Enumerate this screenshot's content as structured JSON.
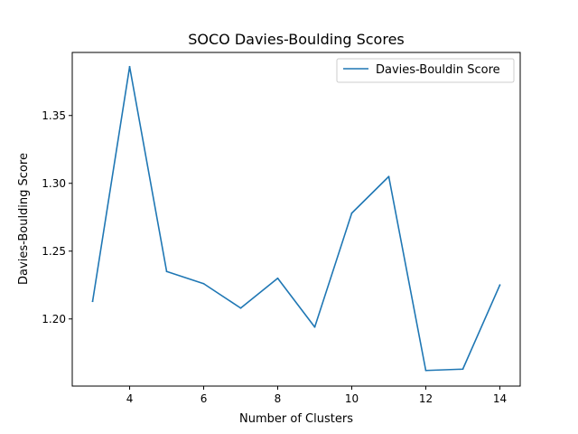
{
  "chart_data": {
    "type": "line",
    "title": "SOCO Davies-Boulding Scores",
    "xlabel": "Number of Clusters",
    "ylabel": "Davies-Boulding Score",
    "xlim": [
      2.45,
      14.55
    ],
    "ylim": [
      1.1505,
      1.3965
    ],
    "xticks": [
      4,
      6,
      8,
      10,
      12,
      14
    ],
    "yticks": [
      1.2,
      1.25,
      1.3,
      1.35
    ],
    "xtick_labels": [
      "4",
      "6",
      "8",
      "10",
      "12",
      "14"
    ],
    "ytick_labels": [
      "1.20",
      "1.25",
      "1.30",
      "1.35"
    ],
    "grid": false,
    "legend_position": "top-right",
    "series": [
      {
        "name": "Davies-Bouldin Score",
        "color": "#1f77b4",
        "x": [
          3,
          4,
          5,
          6,
          7,
          8,
          9,
          10,
          11,
          12,
          13,
          14
        ],
        "y": [
          1.213,
          1.386,
          1.235,
          1.226,
          1.208,
          1.23,
          1.194,
          1.278,
          1.305,
          1.162,
          1.163,
          1.225
        ]
      }
    ]
  }
}
